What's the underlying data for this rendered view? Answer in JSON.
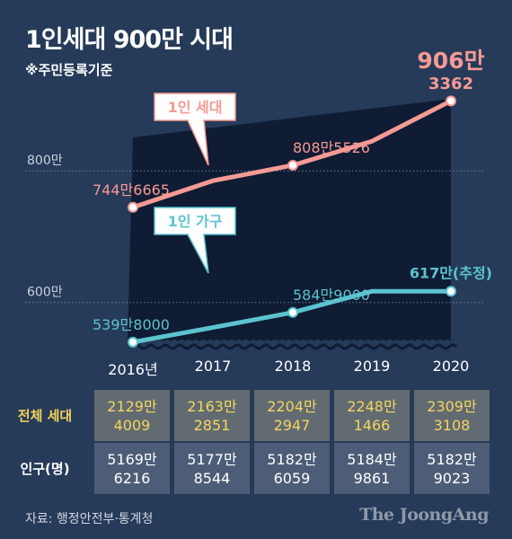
{
  "title": "1인세대 900만 시대",
  "subtitle": "※주민등록기준",
  "colors": {
    "households": "#f49a95",
    "single": "#5cc3cf",
    "background": "#263a59",
    "plot": "#0f1c33"
  },
  "chart_data": {
    "type": "line",
    "x": [
      "2016년",
      "2017",
      "2018",
      "2019",
      "2020"
    ],
    "ylim": [
      5000000,
      9300000
    ],
    "y_ticks": [
      {
        "value": 8000000,
        "label": "800만"
      },
      {
        "value": 6000000,
        "label": "600만"
      }
    ],
    "series": [
      {
        "name": "1인 세대",
        "values": [
          7446665,
          7850000,
          8085526,
          8450000,
          9063362
        ],
        "labels": [
          {
            "index": 0,
            "text": "744만6665"
          },
          {
            "index": 2,
            "text": "808만5526"
          }
        ],
        "final_label": [
          "906만",
          "3362"
        ]
      },
      {
        "name": "1인 가구",
        "values": [
          5398000,
          5620000,
          5849000,
          6170000,
          6170000
        ],
        "labels": [
          {
            "index": 0,
            "text": "539만8000"
          },
          {
            "index": 2,
            "text": "584만9000"
          }
        ],
        "final_label": [
          "617만(추정)"
        ]
      }
    ],
    "grid": true,
    "legend": "inline"
  },
  "table": {
    "rows": [
      {
        "label": "전체 세대",
        "cells": [
          [
            "2129만",
            "4009"
          ],
          [
            "2163만",
            "2851"
          ],
          [
            "2204만",
            "2947"
          ],
          [
            "2248만",
            "1466"
          ],
          [
            "2309만",
            "3108"
          ]
        ]
      },
      {
        "label": "인구(명)",
        "cells": [
          [
            "5169만",
            "6216"
          ],
          [
            "5177만",
            "8544"
          ],
          [
            "5182만",
            "6059"
          ],
          [
            "5184만",
            "9861"
          ],
          [
            "5182만",
            "9023"
          ]
        ]
      }
    ]
  },
  "source": "자료: 행정안전부·통계청",
  "logo": "The JoongAng"
}
